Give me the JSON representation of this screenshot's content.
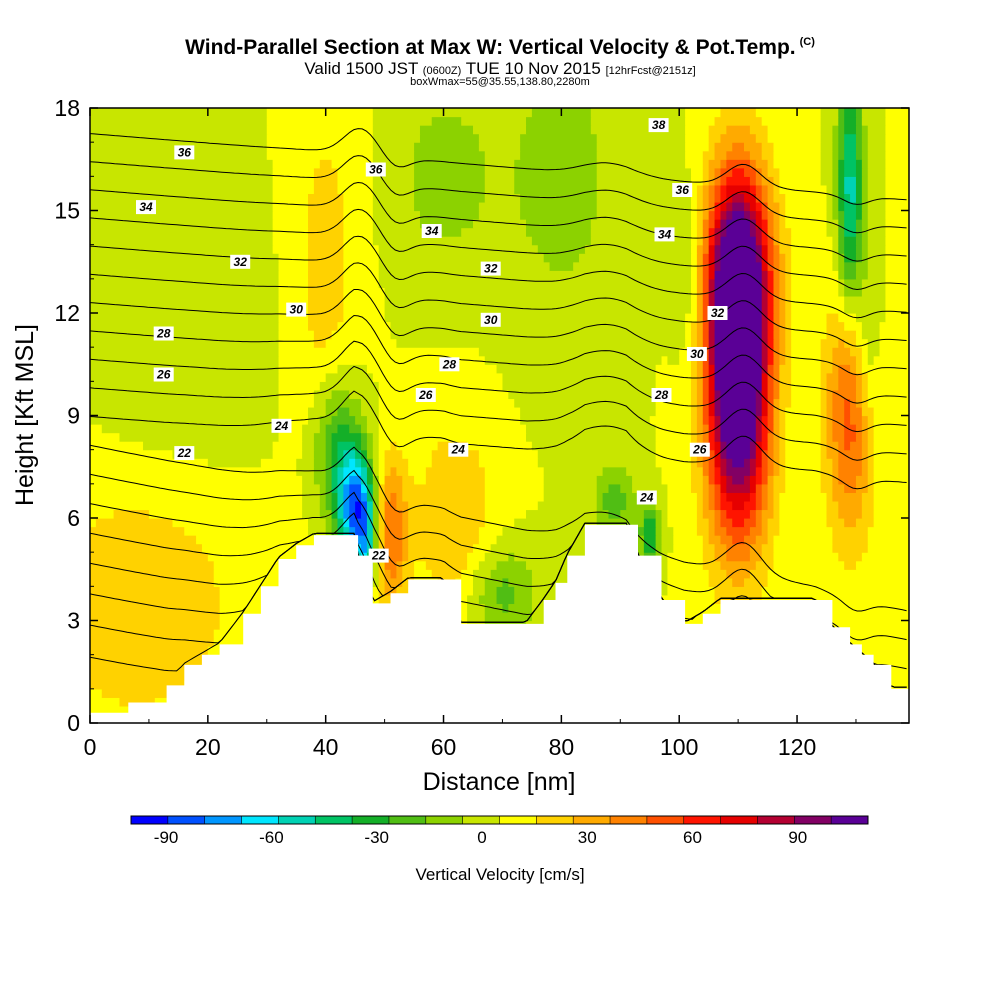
{
  "chart_data": {
    "type": "heatmap",
    "title": "Wind-Parallel Section at Max W: Vertical Velocity & Pot.Temp.",
    "title_mark": "(C)",
    "subtitle_valid": "Valid 1500 JST",
    "subtitle_utc": "(0600Z)",
    "subtitle_date": "TUE 10 Nov 2015",
    "subtitle_fcst": "[12hrFcst@2151z]",
    "box_info": "boxWmax=55@35.55,138.80,2280m",
    "xlabel": "Distance [nm]",
    "ylabel": "Height [Kft MSL]",
    "xlim": [
      0,
      139
    ],
    "ylim": [
      0,
      18
    ],
    "x_ticks": [
      "0",
      "20",
      "40",
      "60",
      "80",
      "100",
      "120"
    ],
    "y_ticks": [
      "0",
      "3",
      "6",
      "9",
      "12",
      "15",
      "18"
    ],
    "colorbar": {
      "title": "Vertical Velocity [cm/s]",
      "range": [
        -100,
        110
      ],
      "step": 10,
      "ticks": [
        "-90",
        "-60",
        "-30",
        "0",
        "30",
        "60",
        "90"
      ],
      "tick_values": [
        -90,
        -60,
        -30,
        0,
        30,
        60,
        90
      ],
      "colors": [
        "#0000ff",
        "#0050ff",
        "#0096ff",
        "#00e6ff",
        "#00d2b4",
        "#00c364",
        "#14af28",
        "#50be14",
        "#8cd200",
        "#c8e600",
        "#ffff00",
        "#ffd200",
        "#ffaa00",
        "#ff8200",
        "#ff5000",
        "#ff1400",
        "#e60000",
        "#b40032",
        "#820064",
        "#5a0096"
      ]
    },
    "terrain_kft": [
      [
        0,
        0.3
      ],
      [
        6.5,
        0.6
      ],
      [
        13,
        1.1
      ],
      [
        16,
        1.7
      ],
      [
        19,
        2.0
      ],
      [
        22,
        2.3
      ],
      [
        26,
        3.2
      ],
      [
        29,
        4.0
      ],
      [
        32,
        4.8
      ],
      [
        35,
        5.2
      ],
      [
        38,
        5.5
      ],
      [
        45,
        5.5
      ],
      [
        45.5,
        4.9
      ],
      [
        48,
        3.5
      ],
      [
        51,
        3.8
      ],
      [
        54,
        4.2
      ],
      [
        60,
        4.2
      ],
      [
        63,
        2.9
      ],
      [
        67,
        2.9
      ],
      [
        74,
        2.9
      ],
      [
        77,
        3.6
      ],
      [
        79,
        4.1
      ],
      [
        81,
        4.9
      ],
      [
        84,
        5.8
      ],
      [
        91,
        5.8
      ],
      [
        93,
        4.9
      ],
      [
        97,
        3.6
      ],
      [
        101,
        2.9
      ],
      [
        104,
        3.2
      ],
      [
        107,
        3.6
      ],
      [
        117,
        3.6
      ],
      [
        123,
        3.6
      ],
      [
        126,
        2.8
      ],
      [
        129,
        2.3
      ],
      [
        131,
        2.0
      ],
      [
        133,
        1.7
      ],
      [
        136,
        1.0
      ],
      [
        139,
        1.0
      ]
    ],
    "velocity_cells_cm_s": [
      {
        "x": 110,
        "y": 11.5,
        "sx": 3.5,
        "sy": 3.2,
        "w": 95
      },
      {
        "x": 110,
        "y": 9.0,
        "sx": 4.0,
        "sy": 3.0,
        "w": 55
      },
      {
        "x": 110,
        "y": 13.5,
        "sx": 4.5,
        "sy": 1.8,
        "w": 40
      },
      {
        "x": 129,
        "y": 9.0,
        "sx": 3.0,
        "sy": 2.6,
        "w": 45
      },
      {
        "x": 51,
        "y": 5.5,
        "sx": 2.0,
        "sy": 1.6,
        "w": 40
      },
      {
        "x": 47,
        "y": 5.2,
        "sx": 1.3,
        "sy": 1.0,
        "w": -40
      },
      {
        "x": 45,
        "y": 6.3,
        "sx": 2.2,
        "sy": 1.2,
        "w": -75
      },
      {
        "x": 42,
        "y": 8.0,
        "sx": 3.0,
        "sy": 1.5,
        "w": -35
      },
      {
        "x": 89,
        "y": 6.5,
        "sx": 2.5,
        "sy": 0.8,
        "w": -25
      },
      {
        "x": 95,
        "y": 5.5,
        "sx": 1.2,
        "sy": 0.6,
        "w": -40
      },
      {
        "x": 129,
        "y": 15.5,
        "sx": 1.5,
        "sy": 2.5,
        "w": -55
      },
      {
        "x": 132,
        "y": 11.0,
        "sx": 1.5,
        "sy": 2.0,
        "w": -20
      },
      {
        "x": 62,
        "y": 6.0,
        "sx": 5.0,
        "sy": 2.0,
        "w": 20
      },
      {
        "x": 40,
        "y": 13.0,
        "sx": 4.0,
        "sy": 4.0,
        "w": 15
      },
      {
        "x": 8,
        "y": 3.5,
        "sx": 12.0,
        "sy": 2.5,
        "w": 20
      },
      {
        "x": 70,
        "y": 3.8,
        "sx": 4.0,
        "sy": 1.0,
        "w": -25
      },
      {
        "x": 80,
        "y": 16.0,
        "sx": 7.0,
        "sy": 3.0,
        "w": -15
      },
      {
        "x": 60,
        "y": 16.0,
        "sx": 6.0,
        "sy": 2.0,
        "w": -15
      },
      {
        "x": 102,
        "y": 13.0,
        "sx": 2.0,
        "sy": 2.0,
        "w": -15
      },
      {
        "x": 15,
        "y": 11.5,
        "sx": 10.0,
        "sy": 3.0,
        "w": -8
      }
    ],
    "theta_contour_labels": [
      {
        "text": "36",
        "x": 16,
        "y": 16.7
      },
      {
        "text": "34",
        "x": 9.5,
        "y": 15.1
      },
      {
        "text": "32",
        "x": 25.5,
        "y": 13.5
      },
      {
        "text": "30",
        "x": 35,
        "y": 12.1
      },
      {
        "text": "28",
        "x": 12.5,
        "y": 11.4
      },
      {
        "text": "26",
        "x": 12.5,
        "y": 10.2
      },
      {
        "text": "24",
        "x": 32.5,
        "y": 8.7
      },
      {
        "text": "22",
        "x": 16,
        "y": 7.9
      },
      {
        "text": "22",
        "x": 49,
        "y": 4.9
      },
      {
        "text": "36",
        "x": 48.5,
        "y": 16.2
      },
      {
        "text": "34",
        "x": 58,
        "y": 14.4
      },
      {
        "text": "32",
        "x": 68,
        "y": 13.3
      },
      {
        "text": "30",
        "x": 68,
        "y": 11.8
      },
      {
        "text": "28",
        "x": 61,
        "y": 10.5
      },
      {
        "text": "26",
        "x": 57,
        "y": 9.6
      },
      {
        "text": "24",
        "x": 62.5,
        "y": 8.0
      },
      {
        "text": "24",
        "x": 94.5,
        "y": 6.6
      },
      {
        "text": "26",
        "x": 103.5,
        "y": 8.0
      },
      {
        "text": "28",
        "x": 97,
        "y": 9.6
      },
      {
        "text": "30",
        "x": 103,
        "y": 10.8
      },
      {
        "text": "32",
        "x": 106.5,
        "y": 12.0
      },
      {
        "text": "34",
        "x": 97.5,
        "y": 14.3
      },
      {
        "text": "36",
        "x": 100.5,
        "y": 15.6
      },
      {
        "text": "38",
        "x": 96.5,
        "y": 17.5
      }
    ]
  }
}
